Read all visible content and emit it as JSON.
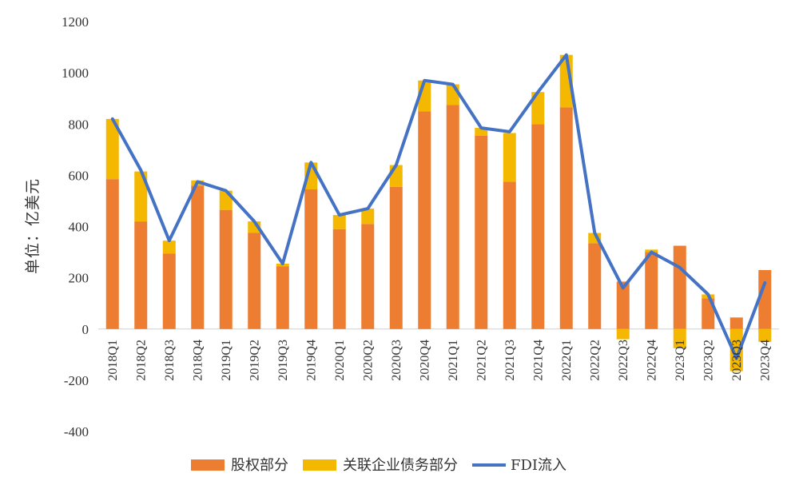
{
  "chart_data": {
    "type": "bar",
    "title": "",
    "xlabel": "",
    "ylabel": "单位：亿美元",
    "ylim": [
      -400,
      1200
    ],
    "yticks": [
      1200,
      1000,
      800,
      600,
      400,
      200,
      0,
      -200,
      -400
    ],
    "grid": false,
    "legend_position": "bottom",
    "categories": [
      "2018Q1",
      "2018Q2",
      "2018Q3",
      "2018Q4",
      "2019Q1",
      "2019Q2",
      "2019Q3",
      "2019Q4",
      "2020Q1",
      "2020Q2",
      "2020Q3",
      "2020Q4",
      "2021Q1",
      "2021Q2",
      "2021Q3",
      "2021Q4",
      "2022Q1",
      "2022Q2",
      "2022Q3",
      "2022Q4",
      "2023Q1",
      "2023Q2",
      "2023Q3",
      "2023Q4"
    ],
    "series": [
      {
        "name": "股权部分",
        "kind": "stacked-bar",
        "color": "#ED7D31",
        "values": [
          585,
          420,
          295,
          560,
          465,
          375,
          245,
          545,
          390,
          410,
          555,
          850,
          875,
          755,
          575,
          800,
          865,
          335,
          185,
          300,
          325,
          120,
          45,
          230
        ]
      },
      {
        "name": "关联企业债务部分",
        "kind": "stacked-bar",
        "color": "#F4B800",
        "values": [
          235,
          195,
          50,
          20,
          75,
          45,
          10,
          105,
          55,
          60,
          85,
          120,
          80,
          30,
          190,
          125,
          205,
          40,
          -40,
          10,
          -75,
          15,
          -165,
          -50
        ]
      },
      {
        "name": "FDI流入",
        "kind": "line",
        "color": "#4472C4",
        "values": [
          820,
          620,
          345,
          575,
          540,
          420,
          255,
          650,
          445,
          470,
          640,
          970,
          955,
          785,
          770,
          925,
          1070,
          375,
          160,
          300,
          240,
          135,
          -115,
          180
        ]
      }
    ]
  }
}
